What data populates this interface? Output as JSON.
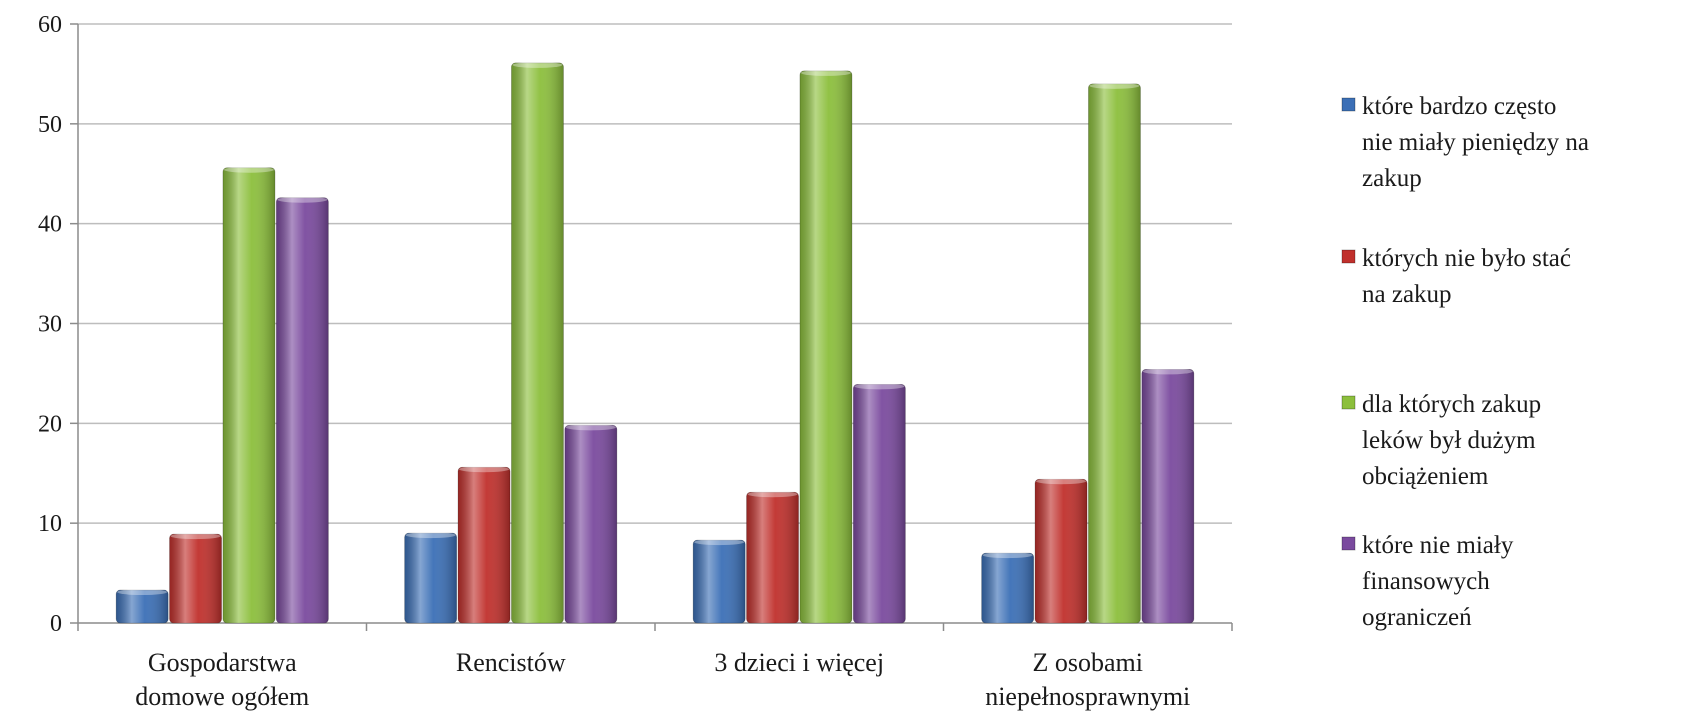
{
  "chart_data": {
    "type": "bar",
    "categories": [
      [
        "Gospodarstwa",
        "domowe ogółem"
      ],
      [
        "Rencistów"
      ],
      [
        "3 dzieci i więcej"
      ],
      [
        "Z osobami",
        "niepełnosprawnymi"
      ]
    ],
    "series": [
      {
        "name": [
          "które bardzo często",
          "nie miały pieniędzy na",
          "zakup"
        ],
        "color": "#3b6fb6",
        "values": [
          3.3,
          9.0,
          8.3,
          7.0
        ]
      },
      {
        "name": [
          "których nie było stać",
          "na zakup"
        ],
        "color": "#c0302c",
        "values": [
          8.9,
          15.6,
          13.1,
          14.4
        ]
      },
      {
        "name": [
          "dla których zakup",
          "leków był dużym",
          "obciążeniem"
        ],
        "color": "#8cbf3c",
        "values": [
          45.6,
          56.1,
          55.3,
          54.0
        ]
      },
      {
        "name": [
          "które nie miały",
          "finansowych",
          "ograniczeń"
        ],
        "color": "#7a4a9e",
        "values": [
          42.6,
          19.8,
          23.9,
          25.4
        ]
      }
    ],
    "ylim": [
      0,
      60
    ],
    "yticks": [
      0,
      10,
      20,
      30,
      40,
      50,
      60
    ],
    "grid": true,
    "legend_position": "right"
  }
}
